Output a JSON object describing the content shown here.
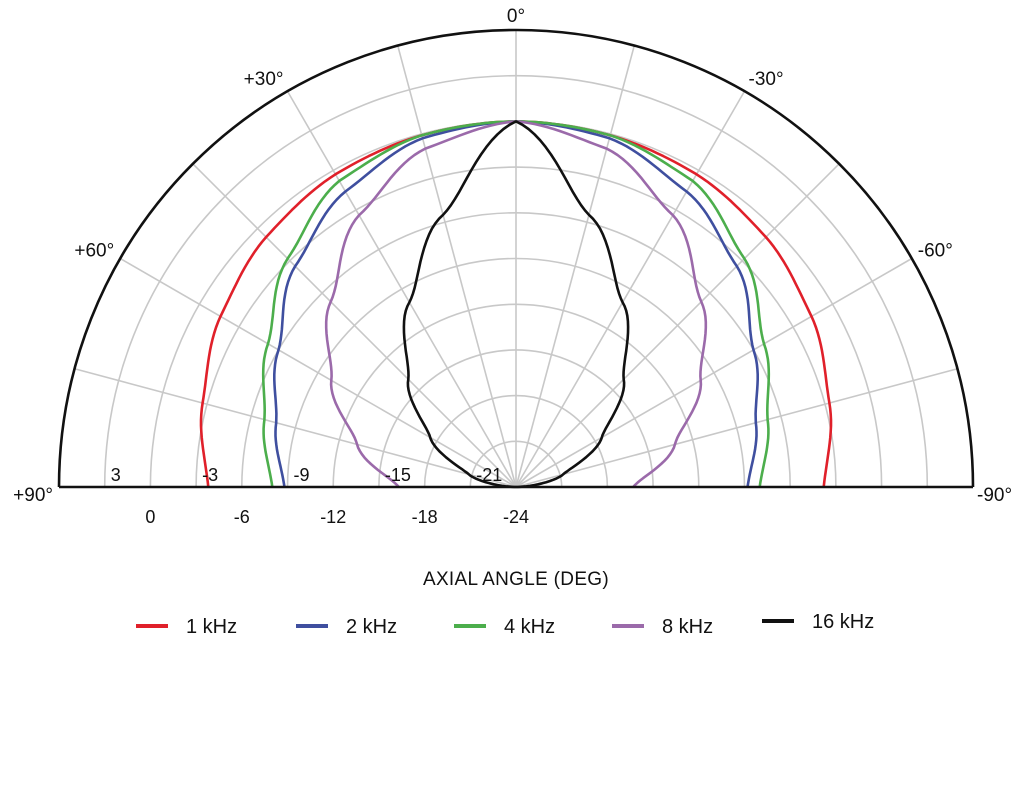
{
  "chart_data": {
    "type": "polar-half",
    "xlabel": "AXIAL ANGLE (DEG)",
    "angle_ticks": [
      {
        "angle": 0,
        "label": "0°"
      },
      {
        "angle": 30,
        "label": "+30°"
      },
      {
        "angle": -30,
        "label": "-30°"
      },
      {
        "angle": 60,
        "label": "+60°"
      },
      {
        "angle": -60,
        "label": "-60°"
      },
      {
        "angle": 90,
        "label": "+90°"
      },
      {
        "angle": -90,
        "label": "-90°"
      }
    ],
    "r_range_db": [
      -24,
      6
    ],
    "r_gridlines_db": [
      -24,
      -21,
      -18,
      -15,
      -12,
      -9,
      -6,
      -3,
      0,
      3
    ],
    "r_labels_inner": [
      "3",
      "-3",
      "-9",
      "-15",
      "-21"
    ],
    "r_labels_outer": [
      "0",
      "-6",
      "-12",
      "-18",
      "-24"
    ],
    "angle_grid_step_deg": 15,
    "series": [
      {
        "name": "1 kHz",
        "color": "#e0202a",
        "angles": [
          0,
          15,
          30,
          45,
          60,
          75,
          90
        ],
        "values": [
          0,
          -0.1,
          -0.3,
          -0.8,
          -1.6,
          -2.7,
          -3.8
        ]
      },
      {
        "name": "2 kHz",
        "color": "#3f4f9f",
        "angles": [
          0,
          15,
          30,
          45,
          60,
          75,
          90
        ],
        "values": [
          0,
          -0.3,
          -1.6,
          -3.5,
          -6.0,
          -7.7,
          -8.8
        ]
      },
      {
        "name": "4 kHz",
        "color": "#4cae4c",
        "angles": [
          0,
          15,
          30,
          45,
          60,
          75,
          90
        ],
        "values": [
          0,
          -0.1,
          -0.8,
          -2.8,
          -5.2,
          -6.9,
          -8.0
        ]
      },
      {
        "name": "8 kHz",
        "color": "#9b6aaa",
        "angles": [
          0,
          15,
          30,
          45,
          60,
          75,
          90
        ],
        "values": [
          0,
          -1.0,
          -3.4,
          -6.8,
          -10.0,
          -13.2,
          -16.3
        ]
      },
      {
        "name": "16 kHz",
        "color": "#111111",
        "angles": [
          0,
          15,
          30,
          45,
          60,
          75,
          90
        ],
        "values": [
          0,
          -5.5,
          -10.0,
          -14.0,
          -17.5,
          -20.8,
          -24
        ]
      }
    ]
  }
}
